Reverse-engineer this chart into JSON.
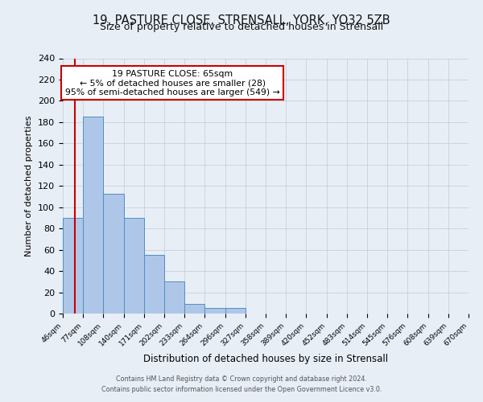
{
  "title": "19, PASTURE CLOSE, STRENSALL, YORK, YO32 5ZB",
  "subtitle": "Size of property relative to detached houses in Strensall",
  "xlabel": "Distribution of detached houses by size in Strensall",
  "ylabel": "Number of detached properties",
  "footer_line1": "Contains HM Land Registry data © Crown copyright and database right 2024.",
  "footer_line2": "Contains public sector information licensed under the Open Government Licence v3.0.",
  "bin_edges": [
    46,
    77,
    108,
    140,
    171,
    202,
    233,
    264,
    296,
    327,
    358,
    389,
    420,
    452,
    483,
    514,
    545,
    576,
    608,
    639,
    670
  ],
  "bar_heights": [
    90,
    185,
    113,
    90,
    55,
    30,
    9,
    5,
    5,
    0,
    0,
    0,
    0,
    0,
    0,
    0,
    0,
    0,
    0,
    0,
    2
  ],
  "bar_color": "#aec6e8",
  "bar_edge_color": "#5090c0",
  "property_size": 65,
  "red_line_color": "#cc0000",
  "annotation_line1": "19 PASTURE CLOSE: 65sqm",
  "annotation_line2": "← 5% of detached houses are smaller (28)",
  "annotation_line3": "95% of semi-detached houses are larger (549) →",
  "annotation_box_facecolor": "#ffffff",
  "annotation_box_edgecolor": "#cc0000",
  "ylim": [
    0,
    240
  ],
  "yticks": [
    0,
    20,
    40,
    60,
    80,
    100,
    120,
    140,
    160,
    180,
    200,
    220,
    240
  ],
  "grid_color": "#c8d0dc",
  "background_color": "#e8eef6",
  "title_fontsize": 10.5,
  "subtitle_fontsize": 9,
  "ylabel_fontsize": 8,
  "xlabel_fontsize": 8.5,
  "ytick_fontsize": 8,
  "xtick_fontsize": 6.5,
  "footer_fontsize": 5.8,
  "footer_color": "#555555",
  "annotation_fontsize": 7.8
}
